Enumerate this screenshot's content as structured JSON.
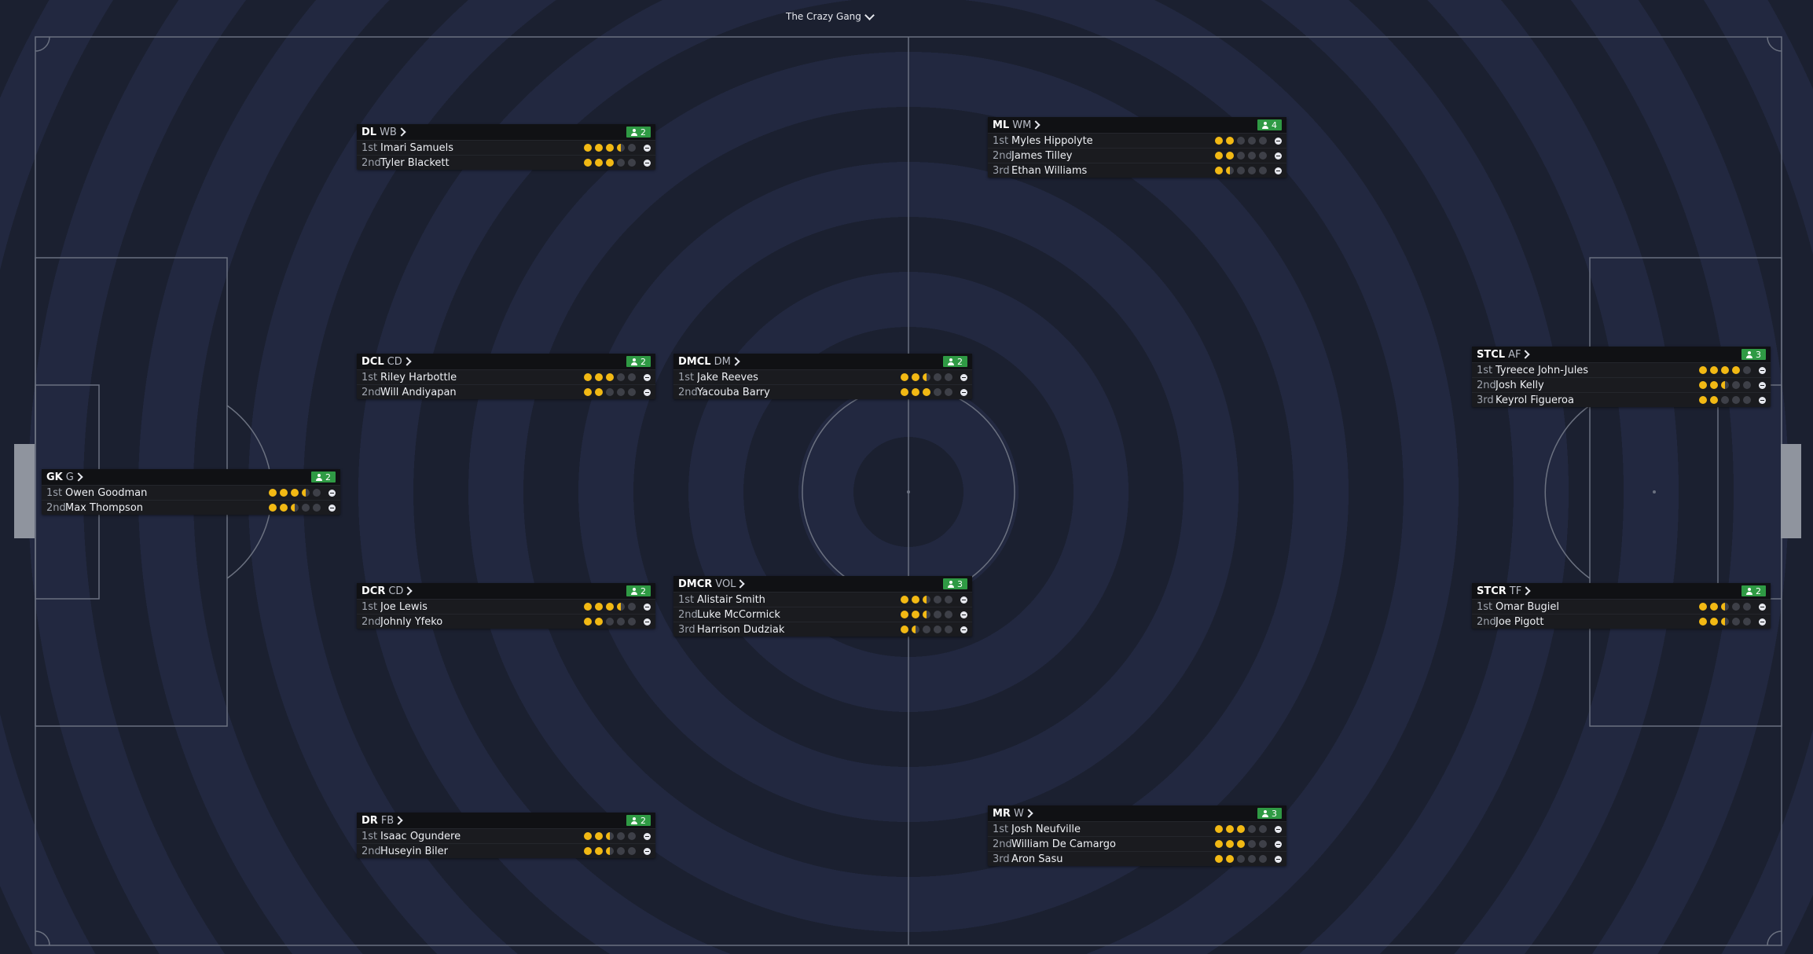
{
  "team_selector": {
    "label": "The Crazy Gang"
  },
  "colors": {
    "accent": "#2f9a44",
    "star": "#f2b914"
  },
  "cards": [
    {
      "pos": "GK",
      "role": "G",
      "count": "2",
      "players": [
        {
          "rank": "1st",
          "name": "Owen Goodman",
          "stars": 3.5
        },
        {
          "rank": "2nd",
          "name": "Max Thompson",
          "stars": 2.5
        }
      ]
    },
    {
      "pos": "DL",
      "role": "WB",
      "count": "2",
      "players": [
        {
          "rank": "1st",
          "name": "Imari Samuels",
          "stars": 3.5
        },
        {
          "rank": "2nd",
          "name": "Tyler Blackett",
          "stars": 3
        }
      ]
    },
    {
      "pos": "DCL",
      "role": "CD",
      "count": "2",
      "players": [
        {
          "rank": "1st",
          "name": "Riley Harbottle",
          "stars": 3
        },
        {
          "rank": "2nd",
          "name": "Will Andiyapan",
          "stars": 2
        }
      ]
    },
    {
      "pos": "DCR",
      "role": "CD",
      "count": "2",
      "players": [
        {
          "rank": "1st",
          "name": "Joe Lewis",
          "stars": 3.5
        },
        {
          "rank": "2nd",
          "name": "Johnly Yfeko",
          "stars": 2
        }
      ]
    },
    {
      "pos": "DR",
      "role": "FB",
      "count": "2",
      "players": [
        {
          "rank": "1st",
          "name": "Isaac Ogundere",
          "stars": 2.5
        },
        {
          "rank": "2nd",
          "name": "Huseyin Biler",
          "stars": 2.5
        }
      ]
    },
    {
      "pos": "DMCL",
      "role": "DM",
      "count": "2",
      "players": [
        {
          "rank": "1st",
          "name": "Jake Reeves",
          "stars": 2.5
        },
        {
          "rank": "2nd",
          "name": "Yacouba Barry",
          "stars": 3
        }
      ]
    },
    {
      "pos": "DMCR",
      "role": "VOL",
      "count": "3",
      "players": [
        {
          "rank": "1st",
          "name": "Alistair Smith",
          "stars": 2.5
        },
        {
          "rank": "2nd",
          "name": "Luke McCormick",
          "stars": 2.5
        },
        {
          "rank": "3rd",
          "name": "Harrison Dudziak",
          "stars": 1.5
        }
      ]
    },
    {
      "pos": "ML",
      "role": "WM",
      "count": "4",
      "players": [
        {
          "rank": "1st",
          "name": "Myles Hippolyte",
          "stars": 2
        },
        {
          "rank": "2nd",
          "name": "James Tilley",
          "stars": 2
        },
        {
          "rank": "3rd",
          "name": "Ethan Williams",
          "stars": 1.5
        }
      ]
    },
    {
      "pos": "MR",
      "role": "W",
      "count": "3",
      "players": [
        {
          "rank": "1st",
          "name": "Josh Neufville",
          "stars": 3
        },
        {
          "rank": "2nd",
          "name": "William De Camargo",
          "stars": 3
        },
        {
          "rank": "3rd",
          "name": "Aron Sasu",
          "stars": 2
        }
      ]
    },
    {
      "pos": "STCL",
      "role": "AF",
      "count": "3",
      "players": [
        {
          "rank": "1st",
          "name": "Tyreece John-Jules",
          "stars": 4
        },
        {
          "rank": "2nd",
          "name": "Josh Kelly",
          "stars": 2.5
        },
        {
          "rank": "3rd",
          "name": "Keyrol Figueroa",
          "stars": 2
        }
      ]
    },
    {
      "pos": "STCR",
      "role": "TF",
      "count": "2",
      "players": [
        {
          "rank": "1st",
          "name": "Omar Bugiel",
          "stars": 2.5
        },
        {
          "rank": "2nd",
          "name": "Joe Pigott",
          "stars": 2.5
        }
      ]
    }
  ]
}
